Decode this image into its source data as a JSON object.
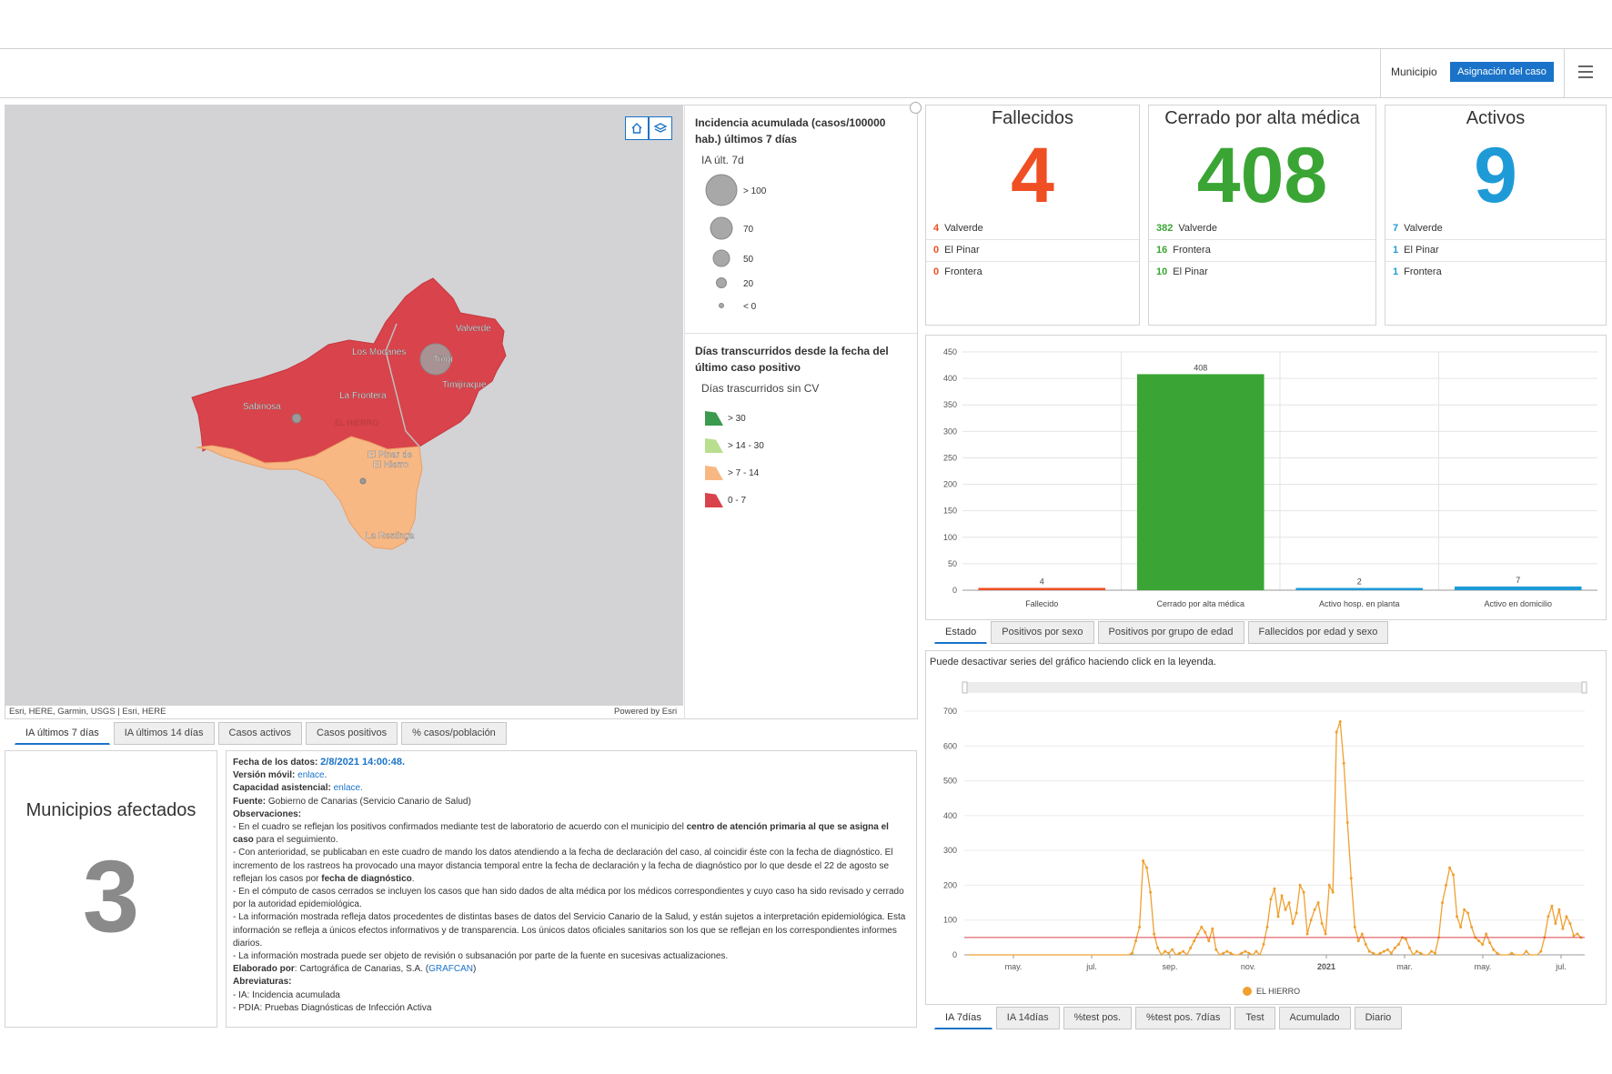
{
  "header": {
    "municipio_label": "Municipio",
    "asignacion_button": "Asignación del caso"
  },
  "map": {
    "attribution_left": "Esri, HERE, Garmin, USGS | Esri, HERE",
    "attribution_right": "Powered by Esri",
    "region_label": "EL HIERRO",
    "places": [
      "Valverde",
      "Los Mocanes",
      "Tiñor",
      "Timijiraque",
      "La Frontera",
      "Sabinosa",
      "El Pinar de",
      "El Hierro",
      "La Restinga"
    ],
    "fill_colors": {
      "red": "#d9434b",
      "orange": "#f8b884"
    }
  },
  "legend": {
    "ia_title": "Incidencia acumulada (casos/100000 hab.) últimos 7 días",
    "ia_sub": "IA últ. 7d",
    "ia_items": [
      "> 100",
      "70",
      "50",
      "20",
      "< 0"
    ],
    "days_title": "Días transcurridos desde la fecha del último caso positivo",
    "days_sub": "Días trascurridos sin CV",
    "days_items": [
      {
        "label": "> 30",
        "color": "#3a9a4e"
      },
      {
        "label": "> 14 - 30",
        "color": "#b8de8e"
      },
      {
        "label": "> 7 - 14",
        "color": "#f8b884"
      },
      {
        "label": "0 - 7",
        "color": "#d9434b"
      }
    ]
  },
  "map_tabs": [
    "IA últimos 7 días",
    "IA últimos 14 días",
    "Casos activos",
    "Casos positivos",
    "% casos/población"
  ],
  "municipios": {
    "title": "Municipios afectados",
    "value": "3"
  },
  "info": {
    "fecha_label": "Fecha de los datos:",
    "fecha_value": "2/8/2021 14:00:48.",
    "version_label": "Versión móvil:",
    "version_link": "enlace",
    "capacidad_label": "Capacidad asistencial:",
    "capacidad_link": "enlace.",
    "fuente_label": "Fuente:",
    "fuente_value": "Gobierno de Canarias (Servicio Canario de Salud)",
    "obs_label": "Observaciones:",
    "obs1a": "- En el cuadro se reflejan los positivos confirmados mediante test de laboratorio de acuerdo con el municipio del",
    "obs1b": "centro de atención primaria al que se asigna el caso",
    "obs1c": "para el seguimiento.",
    "obs2a": "- Con anterioridad, se publicaban en este cuadro de mando los datos atendiendo a la fecha de declaración del caso, al coincidir éste con la fecha de diagnóstico. El incremento de los rastreos ha provocado una mayor distancia temporal entre la fecha de declaración y la fecha de diagnóstico por lo que desde el 22 de agosto se reflejan los casos por",
    "obs2b": "fecha de diagnóstico",
    "obs3": "- En el cómputo de casos cerrados se incluyen los casos que han sido dados de alta médica por los médicos correspondientes y cuyo caso ha sido revisado y cerrado por la autoridad epidemiológica.",
    "obs4": "- La información mostrada refleja datos procedentes de distintas bases de datos del Servicio Canario de la Salud, y están sujetos a interpretación epidemiológica. Esta información se refleja a únicos efectos informativos y de transparencia. Los únicos datos oficiales sanitarios son los que se reflejan en los correspondientes informes diarios.",
    "obs5": "- La información mostrada puede ser objeto de revisión o subsanación por parte de la fuente en sucesivas actualizaciones.",
    "elab_label": "Elaborado por",
    "elab_value": ": Cartográfica de Canarias, S.A. (",
    "elab_link": "GRAFCAN",
    "abrev_label": "Abreviaturas:",
    "abrev1": "- IA: Incidencia acumulada",
    "abrev2": "- PDIA:  Pruebas Diagnósticas de Infección Activa"
  },
  "indicators": [
    {
      "title": "Fallecidos",
      "value": "4",
      "color": "#f04e23",
      "rows": [
        {
          "n": "4",
          "name": "Valverde"
        },
        {
          "n": "0",
          "name": "El Pinar"
        },
        {
          "n": "0",
          "name": "Frontera"
        }
      ]
    },
    {
      "title": "Cerrado por alta médica",
      "value": "408",
      "color": "#3aa534",
      "rows": [
        {
          "n": "382",
          "name": "Valverde"
        },
        {
          "n": "16",
          "name": "Frontera"
        },
        {
          "n": "10",
          "name": "El Pinar"
        }
      ]
    },
    {
      "title": "Activos",
      "value": "9",
      "color": "#1e9bd7",
      "rows": [
        {
          "n": "7",
          "name": "Valverde"
        },
        {
          "n": "1",
          "name": "El Pinar"
        },
        {
          "n": "1",
          "name": "Frontera"
        }
      ]
    }
  ],
  "bar_tabs": [
    "Estado",
    "Positivos por sexo",
    "Positivos por grupo de edad",
    "Fallecidos por edad y sexo"
  ],
  "line_note": "Puede desactivar series del gráfico haciendo click en la leyenda.",
  "line_tabs": [
    "IA 7días",
    "IA 14días",
    "%test pos.",
    "%test pos. 7días",
    "Test",
    "Acumulado",
    "Diario"
  ],
  "chart_data": [
    {
      "type": "bar",
      "categories": [
        "Fallecido",
        "Cerrado por alta médica",
        "Activo hosp. en planta",
        "Activo en domicilio"
      ],
      "values": [
        4,
        408,
        2,
        7
      ],
      "colors": [
        "#f04e23",
        "#3aa534",
        "#1e9bd7",
        "#1e9bd7"
      ],
      "ylim": [
        0,
        450
      ],
      "yticks": [
        0,
        50,
        100,
        150,
        200,
        250,
        300,
        350,
        400,
        450
      ],
      "grid": true
    },
    {
      "type": "line",
      "x_labels": [
        "may.",
        "jul.",
        "sep.",
        "nov.",
        "2021",
        "mar.",
        "may.",
        "jul."
      ],
      "ylim": [
        0,
        700
      ],
      "yticks": [
        0,
        100,
        200,
        300,
        400,
        500,
        600,
        700
      ],
      "series": [
        {
          "name": "EL HIERRO",
          "color": "#f0a030",
          "values": [
            0,
            0,
            0,
            0,
            0,
            0,
            0,
            0,
            0,
            0,
            0,
            0,
            0,
            0,
            0,
            0,
            0,
            0,
            0,
            0,
            0,
            0,
            0,
            0,
            0,
            0,
            0,
            0,
            0,
            0,
            0,
            0,
            0,
            0,
            0,
            0,
            0,
            0,
            0,
            0,
            0,
            0,
            0,
            0,
            0,
            5,
            40,
            80,
            270,
            250,
            180,
            60,
            20,
            0,
            10,
            5,
            15,
            0,
            5,
            10,
            0,
            20,
            40,
            60,
            80,
            65,
            40,
            75,
            15,
            0,
            5,
            10,
            5,
            0,
            0,
            5,
            10,
            5,
            0,
            10,
            0,
            30,
            80,
            160,
            190,
            110,
            170,
            130,
            150,
            90,
            120,
            200,
            180,
            60,
            100,
            130,
            150,
            90,
            60,
            200,
            180,
            640,
            670,
            550,
            380,
            220,
            80,
            40,
            60,
            30,
            10,
            5,
            0,
            5,
            10,
            15,
            5,
            20,
            30,
            50,
            45,
            20,
            0,
            10,
            5,
            0,
            0,
            10,
            5,
            50,
            150,
            200,
            250,
            230,
            110,
            80,
            130,
            120,
            80,
            50,
            40,
            30,
            60,
            35,
            15,
            5,
            0,
            0,
            0,
            5,
            0,
            0,
            0,
            10,
            0,
            0,
            0,
            10,
            50,
            110,
            140,
            90,
            130,
            75,
            110,
            90,
            55,
            60,
            50
          ]
        },
        {
          "name": "threshold",
          "color": "#d9434b",
          "values_const": 50
        }
      ],
      "legend": "bottom"
    }
  ]
}
